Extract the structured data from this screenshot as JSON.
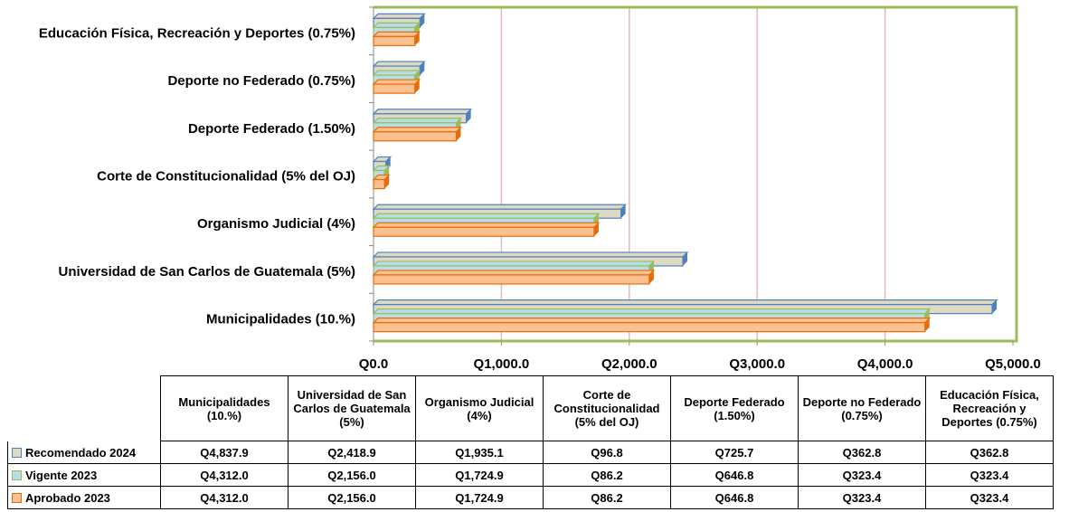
{
  "chart_data": {
    "type": "bar",
    "orientation": "horizontal",
    "categories": [
      "Municipalidades (10.%)",
      "Universidad de San Carlos de Guatemala (5%)",
      "Organismo Judicial (4%)",
      "Corte de Constitucionalidad (5% del OJ)",
      "Deporte Federado (1.50%)",
      "Deporte no Federado (0.75%)",
      "Educación Física, Recreación y Deportes (0.75%)"
    ],
    "series": [
      {
        "name": "Recomendado 2024",
        "color": "#ddd9c3",
        "values": [
          4837.9,
          2418.9,
          1935.1,
          96.8,
          725.7,
          362.8,
          362.8
        ],
        "value_labels": [
          "Q4,837.9",
          "Q2,418.9",
          "Q1,935.1",
          "Q96.8",
          "Q725.7",
          "Q362.8",
          "Q362.8"
        ]
      },
      {
        "name": "Vigente 2023",
        "color": "#b7dee8",
        "values": [
          4312.0,
          2156.0,
          1724.9,
          86.2,
          646.8,
          323.4,
          323.4
        ],
        "value_labels": [
          "Q4,312.0",
          "Q2,156.0",
          "Q1,724.9",
          "Q86.2",
          "Q646.8",
          "Q323.4",
          "Q323.4"
        ]
      },
      {
        "name": "Aprobado 2023",
        "color": "#fac090",
        "values": [
          4312.0,
          2156.0,
          1724.9,
          86.2,
          646.8,
          323.4,
          323.4
        ],
        "value_labels": [
          "Q4,312.0",
          "Q2,156.0",
          "Q1,724.9",
          "Q86.2",
          "Q646.8",
          "Q323.4",
          "Q323.4"
        ]
      }
    ],
    "xlim": [
      0,
      5000
    ],
    "xticks": [
      {
        "value": 0,
        "label": "Q0.0"
      },
      {
        "value": 1000,
        "label": "Q1,000.0"
      },
      {
        "value": 2000,
        "label": "Q2,000.0"
      },
      {
        "value": 3000,
        "label": "Q3,000.0"
      },
      {
        "value": 4000,
        "label": "Q4,000.0"
      },
      {
        "value": 5000,
        "label": "Q5,000.0"
      }
    ],
    "grid": true
  }
}
